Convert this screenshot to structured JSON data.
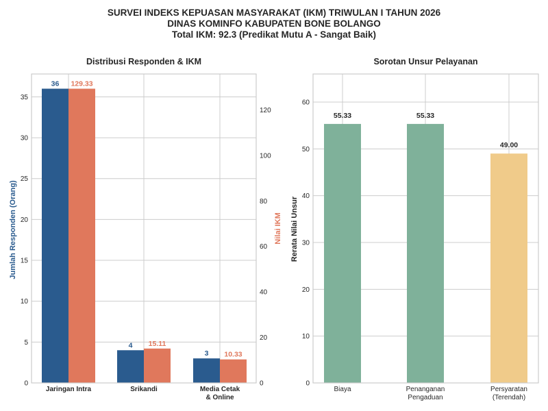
{
  "header": {
    "title_line1": "SURVEI INDEKS KEPUASAN MASYARAKAT (IKM) TRIWULAN I TAHUN 2026",
    "title_line2": "DINAS KOMINFO KABUPATEN BONE BOLANGO",
    "title_line3": "Total IKM: 92.3 (Predikat Mutu A - Sangat Baik)"
  },
  "colors": {
    "responden": "#2a5b8e",
    "ikm": "#e0785c",
    "unsur_normal": "#7fb19a",
    "unsur_lowest": "#f0cb8a",
    "grid": "#cccccc",
    "frame": "#cccccc",
    "text": "#262626"
  },
  "chart_data": [
    {
      "type": "bar",
      "title": "Distribusi Responden & IKM",
      "categories": [
        "Jaringan Intra",
        "Srikandi",
        "Media Cetak\n& Online"
      ],
      "ylabel": "Jumlah Responden (Orang)",
      "y2label": "Nilai IKM",
      "ylim": [
        0,
        37.8
      ],
      "y2lim": [
        0,
        135.8
      ],
      "yticks": [
        0,
        5,
        10,
        15,
        20,
        25,
        30,
        35
      ],
      "y2ticks": [
        0,
        20,
        40,
        60,
        80,
        100,
        120
      ],
      "grid": true,
      "series": [
        {
          "name": "Jumlah Responden (Orang)",
          "axis": "left",
          "values": [
            36,
            4,
            3
          ],
          "labels": [
            "36",
            "4",
            "3"
          ]
        },
        {
          "name": "Nilai IKM",
          "axis": "right",
          "values": [
            129.33,
            15.11,
            10.33
          ],
          "labels": [
            "129.33",
            "15.11",
            "10.33"
          ]
        }
      ]
    },
    {
      "type": "bar",
      "title": "Sorotan Unsur Pelayanan",
      "categories": [
        "Biaya",
        "Penanganan\nPengaduan",
        "Persyaratan\n(Terendah)"
      ],
      "ylabel": "Rerata Nilai Unsur",
      "ylim": [
        0,
        66
      ],
      "yticks": [
        0,
        10,
        20,
        30,
        40,
        50,
        60
      ],
      "grid": true,
      "values": [
        55.33,
        55.33,
        49.0
      ],
      "labels": [
        "55.33",
        "55.33",
        "49.00"
      ],
      "highlight_index": 2
    }
  ]
}
